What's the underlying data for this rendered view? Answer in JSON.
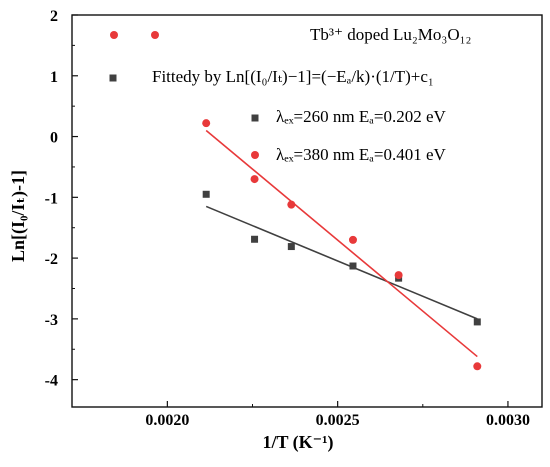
{
  "chart_data": {
    "type": "scatter",
    "title": "",
    "xlabel": "1/T (K⁻¹)",
    "ylabel": "Ln[(I₀/Iₜ)-1]",
    "xlim": [
      0.00172,
      0.0031
    ],
    "ylim": [
      -4.45,
      2.0
    ],
    "xticks": [
      0.002,
      0.0025,
      0.003
    ],
    "xtick_labels": [
      "0.0020",
      "0.0025",
      "0.0030"
    ],
    "yticks": [
      2,
      1,
      0,
      -1,
      -2,
      -3,
      -4
    ],
    "ytick_labels": [
      "2",
      "1",
      "0",
      "-1",
      "-2",
      "-3",
      "-4"
    ],
    "grid": false,
    "legend": {
      "placement": "top",
      "sample_header": "Tb³⁺ doped Lu₂Mo₃O₁₂",
      "fit_formula": "Fittedy by Ln[(I₀/Iₜ)−1]=(−Eₐ/k)·(1/T)+c₁"
    },
    "series": [
      {
        "name": "λₑₓ=260 nm  Eₐ=0.202 eV",
        "marker": "square",
        "color": "#404040",
        "x": [
          0.002114,
          0.002256,
          0.002364,
          0.002545,
          0.002679,
          0.00291
        ],
        "y": [
          -0.95,
          -1.69,
          -1.81,
          -2.13,
          -2.33,
          -3.05
        ]
      },
      {
        "name": "λₑₓ=380 nm  Eₐ=0.401 eV",
        "marker": "circle",
        "color": "#e8393a",
        "x": [
          0.002114,
          0.002256,
          0.002364,
          0.002545,
          0.002679,
          0.00291
        ],
        "y": [
          0.22,
          -0.7,
          -1.12,
          -1.7,
          -2.28,
          -3.78
        ]
      }
    ],
    "fit_lines": [
      {
        "series": "λₑₓ=260 nm  Eₐ=0.202 eV",
        "color": "#404040",
        "x": [
          0.002114,
          0.00291
        ],
        "y": [
          -1.15,
          -3.0
        ]
      },
      {
        "series": "λₑₓ=380 nm  Eₐ=0.401 eV",
        "color": "#e8393a",
        "x": [
          0.002114,
          0.00291
        ],
        "y": [
          0.1,
          -3.62
        ]
      }
    ]
  }
}
